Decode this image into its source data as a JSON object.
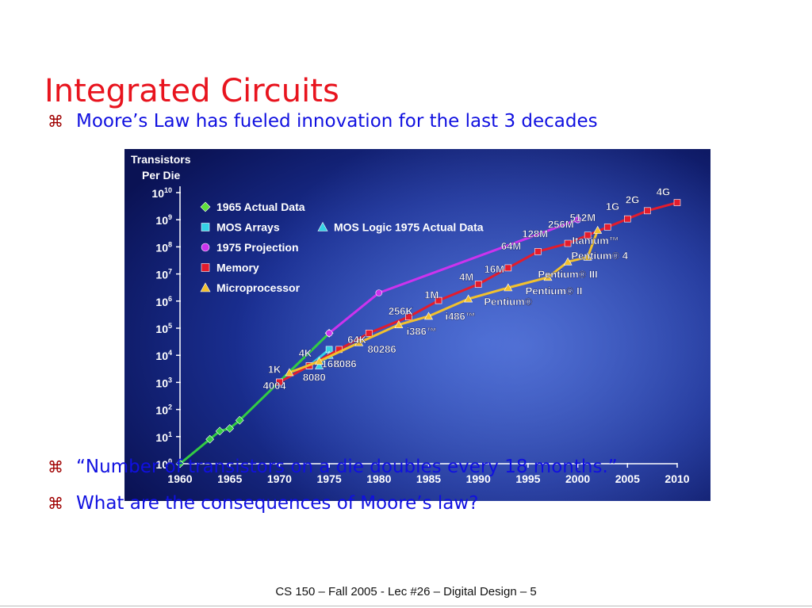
{
  "slide": {
    "title": "Integrated Circuits",
    "bullets": [
      {
        "mark": "⌘",
        "text": "Moore’s Law has fueled innovation for the last 3 decades"
      },
      {
        "mark": "⌘",
        "text": "“Number of transistors on a die doubles every 18 months.”"
      },
      {
        "mark": "⌘",
        "text": "What are the consequences of Moore’s law?"
      }
    ],
    "footer": "CS 150 – Fall 2005 - Lec #26 – Digital Design  – 5"
  },
  "chart_data": {
    "type": "line",
    "ylabel": "Transistors Per Die",
    "yscale": "log",
    "xlim": [
      1960,
      2010
    ],
    "ylim_exp": [
      0,
      10
    ],
    "x_ticks": [
      "1960",
      "1965",
      "1970",
      "1975",
      "1980",
      "1985",
      "1990",
      "1995",
      "2000",
      "2005",
      "2010"
    ],
    "y_ticks": [
      {
        "base": "10",
        "exp": "0"
      },
      {
        "base": "10",
        "exp": "1"
      },
      {
        "base": "10",
        "exp": "2"
      },
      {
        "base": "10",
        "exp": "3"
      },
      {
        "base": "10",
        "exp": "4"
      },
      {
        "base": "10",
        "exp": "5"
      },
      {
        "base": "10",
        "exp": "6"
      },
      {
        "base": "10",
        "exp": "7"
      },
      {
        "base": "10",
        "exp": "8"
      },
      {
        "base": "10",
        "exp": "9"
      },
      {
        "base": "10",
        "exp": "10"
      }
    ],
    "legend": {
      "placement": "top-left",
      "entries": [
        {
          "label": "1965 Actual Data",
          "marker": "diamond",
          "color": "#5ee03a"
        },
        {
          "label": "MOS Arrays",
          "marker": "square",
          "color": "#35d3e6"
        },
        {
          "label": "MOS Logic 1975 Actual Data",
          "marker": "triangle",
          "color": "#35d3e6"
        },
        {
          "label": "1975 Projection",
          "marker": "circle",
          "color": "#cc33ee"
        },
        {
          "label": "Memory",
          "marker": "square",
          "color": "#e31c2c"
        },
        {
          "label": "Microprocessor",
          "marker": "triangle",
          "color": "#f2c12e"
        }
      ]
    },
    "series": [
      {
        "name": "1965 Actual Data",
        "color": "#33cc44",
        "marker": "diamond",
        "points": [
          [
            1960,
            1
          ],
          [
            1963,
            8
          ],
          [
            1964,
            16
          ],
          [
            1965,
            20
          ],
          [
            1966,
            40
          ],
          [
            1975,
            65536
          ]
        ]
      },
      {
        "name": "MOS Arrays",
        "color": "#35d3e6",
        "marker": "square",
        "points": [
          [
            1970,
            1024
          ],
          [
            1973,
            4096
          ],
          [
            1975,
            16384
          ]
        ]
      },
      {
        "name": "MOS Logic 1975 Actual Data",
        "color": "#35d3e6",
        "marker": "triangle",
        "points": [
          [
            1974,
            4096
          ],
          [
            1975,
            10000
          ]
        ]
      },
      {
        "name": "1975 Projection",
        "color": "#cc33ee",
        "marker": "circle",
        "points": [
          [
            1975,
            65536
          ],
          [
            1980,
            2000000
          ],
          [
            2000,
            1000000000
          ]
        ]
      },
      {
        "name": "Memory",
        "color": "#e31c2c",
        "marker": "square",
        "points": [
          [
            1970,
            1024
          ],
          [
            1973,
            4096
          ],
          [
            1976,
            16384
          ],
          [
            1979,
            65536
          ],
          [
            1983,
            262144
          ],
          [
            1986,
            1048576
          ],
          [
            1990,
            4194304
          ],
          [
            1993,
            16777216
          ],
          [
            1996,
            67108864
          ],
          [
            1999,
            134217728
          ],
          [
            2001,
            268435456
          ],
          [
            2003,
            536870912
          ],
          [
            2005,
            1073741824
          ],
          [
            2007,
            2147483648
          ],
          [
            2010,
            4294967296
          ]
        ]
      },
      {
        "name": "Microprocessor",
        "color": "#f2c12e",
        "marker": "triangle",
        "points": [
          [
            1971,
            2300
          ],
          [
            1974,
            6000
          ],
          [
            1978,
            29000
          ],
          [
            1982,
            134000
          ],
          [
            1985,
            275000
          ],
          [
            1989,
            1200000
          ],
          [
            1993,
            3100000
          ],
          [
            1997,
            7500000
          ],
          [
            1999,
            28000000
          ],
          [
            2001,
            42000000
          ],
          [
            2002,
            410000000
          ]
        ]
      }
    ],
    "annotations": [
      {
        "text": "1K",
        "x": 1969.5,
        "ye": 3.35
      },
      {
        "text": "4K",
        "x": 1972.6,
        "ye": 3.95
      },
      {
        "text": "16K",
        "x": 1975.2,
        "ye": 3.55
      },
      {
        "text": "64K",
        "x": 1977.8,
        "ye": 4.45
      },
      {
        "text": "256K",
        "x": 1982.2,
        "ye": 5.5
      },
      {
        "text": "1M",
        "x": 1985.3,
        "ye": 6.1
      },
      {
        "text": "4M",
        "x": 1988.8,
        "ye": 6.75
      },
      {
        "text": "16M",
        "x": 1991.6,
        "ye": 7.05
      },
      {
        "text": "64M",
        "x": 1993.3,
        "ye": 7.9
      },
      {
        "text": "128M",
        "x": 1995.7,
        "ye": 8.35
      },
      {
        "text": "256M",
        "x": 1998.3,
        "ye": 8.7
      },
      {
        "text": "512M",
        "x": 2000.5,
        "ye": 8.95
      },
      {
        "text": "1G",
        "x": 2003.5,
        "ye": 9.35
      },
      {
        "text": "2G",
        "x": 2005.5,
        "ye": 9.6
      },
      {
        "text": "4G",
        "x": 2008.6,
        "ye": 9.9
      },
      {
        "text": "4004",
        "x": 1969.5,
        "ye": 2.75
      },
      {
        "text": "8080",
        "x": 1973.5,
        "ye": 3.05
      },
      {
        "text": "8086",
        "x": 1976.6,
        "ye": 3.55
      },
      {
        "text": "80286",
        "x": 1980.3,
        "ye": 4.1
      },
      {
        "text": "i386™",
        "x": 1984.3,
        "ye": 4.75
      },
      {
        "text": "i486™",
        "x": 1988.2,
        "ye": 5.3
      },
      {
        "text": "Pentium®",
        "x": 1993.0,
        "ye": 5.85
      },
      {
        "text": "Pentium® II",
        "x": 1997.6,
        "ye": 6.25
      },
      {
        "text": "Pentium® III",
        "x": 1999.0,
        "ye": 6.85
      },
      {
        "text": "Pentium® 4",
        "x": 2002.2,
        "ye": 7.55
      },
      {
        "text": "Itanium™",
        "x": 2001.8,
        "ye": 8.1
      }
    ]
  }
}
